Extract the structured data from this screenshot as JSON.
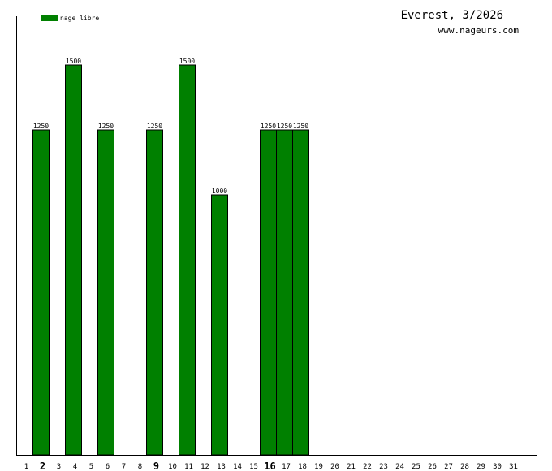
{
  "header": {
    "title": "Everest, 3/2026",
    "site": "www.nageurs.com"
  },
  "colors": {
    "bar": "#008000",
    "bar_stroke": "#000000",
    "axis": "#000000"
  },
  "chart_data": {
    "type": "bar",
    "title": "Everest, 3/2026",
    "xlabel": "",
    "ylabel": "",
    "ylim": [
      0,
      1750
    ],
    "grid": false,
    "legend_position": "top-left",
    "categories": [
      "1",
      "2",
      "3",
      "4",
      "5",
      "6",
      "7",
      "8",
      "9",
      "10",
      "11",
      "12",
      "13",
      "14",
      "15",
      "16",
      "17",
      "18",
      "19",
      "20",
      "21",
      "22",
      "23",
      "24",
      "25",
      "26",
      "27",
      "28",
      "29",
      "30",
      "31"
    ],
    "bold_categories": [
      "2",
      "9",
      "16"
    ],
    "series": [
      {
        "name": "nage libre",
        "values": [
          null,
          1250,
          null,
          1500,
          null,
          1250,
          null,
          null,
          1250,
          null,
          1500,
          null,
          1000,
          null,
          null,
          1250,
          1250,
          1250,
          null,
          null,
          null,
          null,
          null,
          null,
          null,
          null,
          null,
          null,
          null,
          null,
          null
        ],
        "labels": [
          null,
          "1250",
          null,
          "1500",
          null,
          "1250",
          null,
          null,
          "1250",
          null,
          "1500",
          null,
          "1000",
          null,
          null,
          "1250",
          "1250",
          "1250",
          null,
          null,
          null,
          null,
          null,
          null,
          null,
          null,
          null,
          null,
          null,
          null,
          null
        ]
      }
    ]
  }
}
